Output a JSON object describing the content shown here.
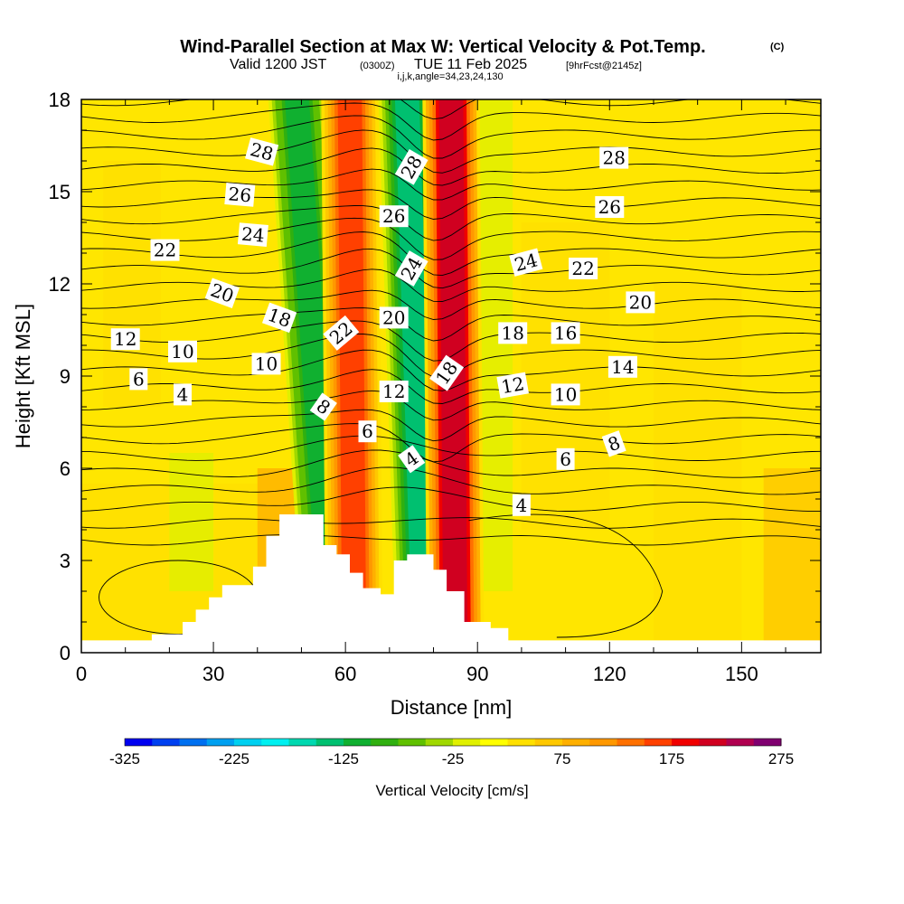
{
  "header": {
    "title": "Wind-Parallel Section at Max W: Vertical Velocity & Pot.Temp.",
    "copyright": "(C)",
    "valid_prefix": "Valid 1200 JST",
    "valid_utc": "(0300Z)",
    "valid_date": "TUE 11 Feb 2025",
    "forecast": "[9hrFcst@2145z]",
    "indices": "i,j,k,angle=34,23,24,130"
  },
  "chart_data": {
    "type": "heatmap",
    "title": "Wind-Parallel Section at Max W: Vertical Velocity & Pot.Temp.",
    "xlabel": "Distance [nm]",
    "ylabel": "Height [Kft MSL]",
    "xlim": [
      0,
      168
    ],
    "ylim": [
      0,
      18
    ],
    "xticks": [
      0,
      30,
      60,
      90,
      120,
      150
    ],
    "yticks": [
      0,
      3,
      6,
      9,
      12,
      15,
      18
    ],
    "colorbar": {
      "label": "Vertical Velocity [cm/s]",
      "range": [
        -325,
        275
      ],
      "step": 25,
      "tick_values": [
        -325,
        -225,
        -125,
        -25,
        75,
        175,
        275
      ],
      "colors": [
        "#0000f0",
        "#0040f0",
        "#0070f0",
        "#00a0f0",
        "#00d0f0",
        "#00f0f0",
        "#00d8b0",
        "#00c070",
        "#10b030",
        "#30b010",
        "#60c000",
        "#a0d800",
        "#e0f000",
        "#ffff00",
        "#ffe000",
        "#ffc800",
        "#ffb000",
        "#ff9800",
        "#ff7000",
        "#ff4000",
        "#f00000",
        "#d00020",
        "#b00050",
        "#800070"
      ]
    },
    "wind_bands": [
      {
        "x_bottom": 57,
        "x_top": 49,
        "w": -130
      },
      {
        "x_bottom": 62,
        "x_top": 61,
        "w": 180
      },
      {
        "x_bottom": 78,
        "x_top": 74,
        "w": -155
      },
      {
        "x_bottom": 85,
        "x_top": 84,
        "w": 260
      }
    ],
    "terrain": [
      [
        0,
        0.4
      ],
      [
        16,
        0.4
      ],
      [
        16,
        0.6
      ],
      [
        23,
        0.6
      ],
      [
        23,
        1.0
      ],
      [
        26,
        1.0
      ],
      [
        26,
        1.4
      ],
      [
        29,
        1.4
      ],
      [
        29,
        1.8
      ],
      [
        32,
        1.8
      ],
      [
        32,
        2.2
      ],
      [
        39,
        2.2
      ],
      [
        39,
        2.8
      ],
      [
        42,
        2.8
      ],
      [
        42,
        3.8
      ],
      [
        45,
        3.8
      ],
      [
        45,
        4.5
      ],
      [
        55,
        4.5
      ],
      [
        55,
        3.5
      ],
      [
        58,
        3.5
      ],
      [
        58,
        3.2
      ],
      [
        61,
        3.2
      ],
      [
        61,
        2.6
      ],
      [
        64,
        2.6
      ],
      [
        64,
        2.1
      ],
      [
        68,
        2.1
      ],
      [
        68,
        1.9
      ],
      [
        71,
        1.9
      ],
      [
        71,
        3.0
      ],
      [
        74,
        3.0
      ],
      [
        74,
        3.2
      ],
      [
        80,
        3.2
      ],
      [
        80,
        2.7
      ],
      [
        83,
        2.7
      ],
      [
        83,
        2.0
      ],
      [
        87,
        2.0
      ],
      [
        87,
        1.0
      ],
      [
        93,
        1.0
      ],
      [
        93,
        0.8
      ],
      [
        97,
        0.8
      ],
      [
        97,
        0.4
      ],
      [
        168,
        0.4
      ]
    ],
    "isentropes": {
      "levels": [
        4,
        6,
        8,
        10,
        12,
        14,
        16,
        18,
        20,
        22,
        24,
        26,
        28
      ],
      "labels": [
        {
          "text": "28",
          "x": 41,
          "y": 16.3,
          "rot": 15
        },
        {
          "text": "26",
          "x": 36,
          "y": 14.9,
          "rot": 5
        },
        {
          "text": "24",
          "x": 39,
          "y": 13.6,
          "rot": 5
        },
        {
          "text": "22",
          "x": 19,
          "y": 13.1,
          "rot": 0
        },
        {
          "text": "20",
          "x": 32,
          "y": 11.7,
          "rot": 20
        },
        {
          "text": "18",
          "x": 45,
          "y": 10.9,
          "rot": 20
        },
        {
          "text": "12",
          "x": 10,
          "y": 10.2,
          "rot": 0
        },
        {
          "text": "10",
          "x": 23,
          "y": 9.8,
          "rot": 0
        },
        {
          "text": "10",
          "x": 42,
          "y": 9.4,
          "rot": 0
        },
        {
          "text": "6",
          "x": 13,
          "y": 8.9,
          "rot": 0
        },
        {
          "text": "4",
          "x": 23,
          "y": 8.4,
          "rot": 0
        },
        {
          "text": "22",
          "x": 59,
          "y": 10.4,
          "rot": -40
        },
        {
          "text": "8",
          "x": 55,
          "y": 8.0,
          "rot": 35
        },
        {
          "text": "6",
          "x": 65,
          "y": 7.2,
          "rot": 0
        },
        {
          "text": "28",
          "x": 75,
          "y": 15.8,
          "rot": -60
        },
        {
          "text": "26",
          "x": 71,
          "y": 14.2,
          "rot": 0
        },
        {
          "text": "24",
          "x": 75,
          "y": 12.5,
          "rot": -60
        },
        {
          "text": "20",
          "x": 71,
          "y": 10.9,
          "rot": 0
        },
        {
          "text": "12",
          "x": 71,
          "y": 8.5,
          "rot": 0
        },
        {
          "text": "4",
          "x": 75,
          "y": 6.3,
          "rot": -35
        },
        {
          "text": "18",
          "x": 83,
          "y": 9.1,
          "rot": -55
        },
        {
          "text": "24",
          "x": 101,
          "y": 12.7,
          "rot": -15
        },
        {
          "text": "22",
          "x": 114,
          "y": 12.5,
          "rot": 0
        },
        {
          "text": "20",
          "x": 127,
          "y": 11.4,
          "rot": 0
        },
        {
          "text": "28",
          "x": 121,
          "y": 16.1,
          "rot": 0
        },
        {
          "text": "26",
          "x": 120,
          "y": 14.5,
          "rot": 0
        },
        {
          "text": "18",
          "x": 98,
          "y": 10.4,
          "rot": 0
        },
        {
          "text": "16",
          "x": 110,
          "y": 10.4,
          "rot": 0
        },
        {
          "text": "14",
          "x": 123,
          "y": 9.3,
          "rot": 0
        },
        {
          "text": "12",
          "x": 98,
          "y": 8.7,
          "rot": -10
        },
        {
          "text": "10",
          "x": 110,
          "y": 8.4,
          "rot": 0
        },
        {
          "text": "8",
          "x": 121,
          "y": 6.8,
          "rot": -20
        },
        {
          "text": "6",
          "x": 110,
          "y": 6.3,
          "rot": 0
        },
        {
          "text": "4",
          "x": 100,
          "y": 4.8,
          "rot": 0
        }
      ]
    }
  }
}
